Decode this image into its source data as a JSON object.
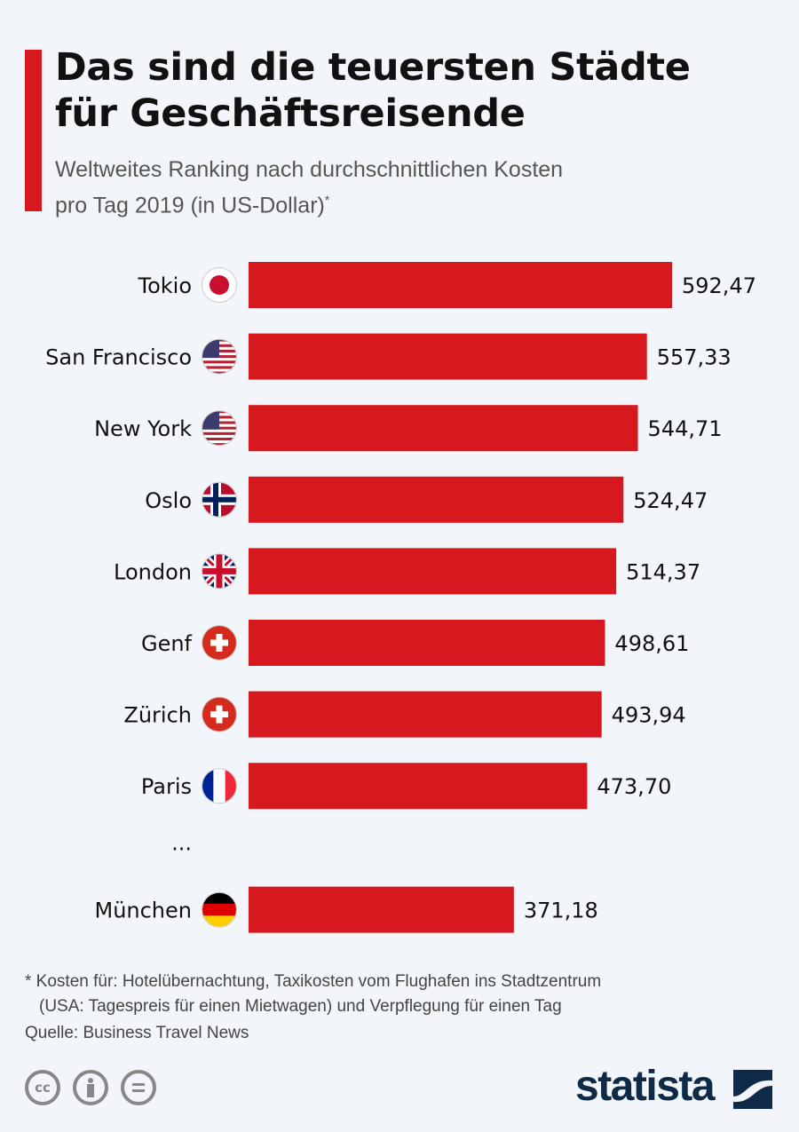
{
  "header": {
    "title_line1": "Das sind die teuersten Städte",
    "title_line2": "für Geschäftsreisende",
    "subtitle_line1": "Weltweites Ranking nach durchschnittlichen Kosten",
    "subtitle_line2": "pro Tag 2019 (in US-Dollar)",
    "subtitle_mark": "*"
  },
  "chart_data": {
    "type": "bar",
    "orientation": "horizontal",
    "categories": [
      "Tokio",
      "San Francisco",
      "New York",
      "Oslo",
      "London",
      "Genf",
      "Zürich",
      "Paris",
      "München"
    ],
    "values": [
      592.47,
      557.33,
      544.71,
      524.47,
      514.37,
      498.61,
      493.94,
      473.7,
      371.18
    ],
    "value_labels": [
      "592,47",
      "557,33",
      "544,71",
      "524,47",
      "514,37",
      "498,61",
      "493,94",
      "473,70",
      "371,18"
    ],
    "flags": [
      "japan",
      "usa",
      "usa",
      "norway",
      "uk",
      "switzerland",
      "switzerland",
      "france",
      "germany"
    ],
    "gap_label": "...",
    "bar_color": "#d7191f",
    "xlim": [
      0,
      592.47
    ]
  },
  "footer": {
    "note_line1": "* Kosten für: Hotelübernachtung, Taxikosten vom Flughafen ins Stadtzentrum",
    "note_line2": "(USA: Tagespreis für einen Mietwagen) und Verpflegung für einen Tag",
    "source": "Quelle: Business Travel News",
    "license_icons": [
      "cc-icon",
      "by-icon",
      "nd-icon"
    ],
    "logo": "statista"
  }
}
